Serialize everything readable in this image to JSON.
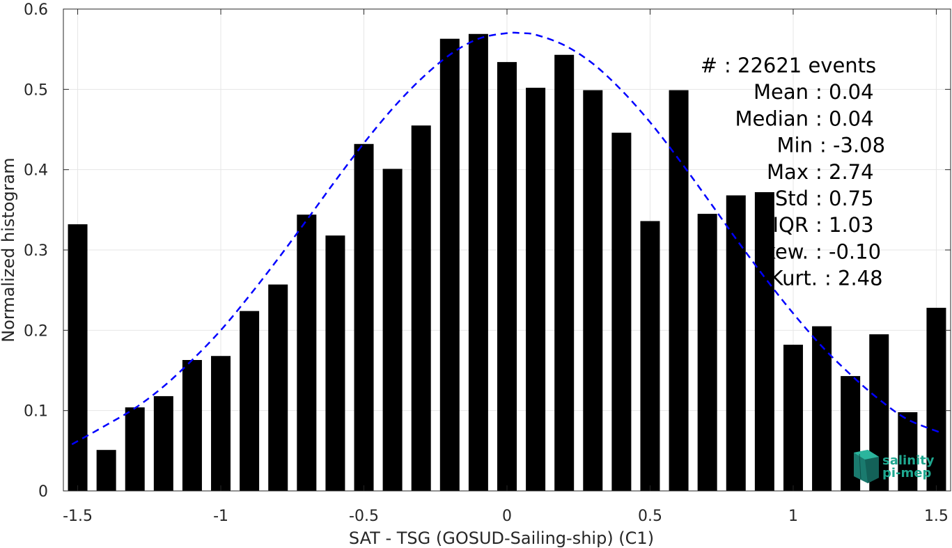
{
  "chart_data": {
    "type": "bar",
    "xlabel": "SAT - TSG (GOSUD-Sailing-ship) (C1)",
    "ylabel": "Normalized histogram",
    "xlim": [
      -1.55,
      1.55
    ],
    "ylim": [
      0,
      0.6
    ],
    "xticks": [
      -1.5,
      -1,
      -0.5,
      0,
      0.5,
      1,
      1.5
    ],
    "xtick_labels": [
      "-1.5",
      "-1",
      "-0.5",
      "0",
      "0.5",
      "1",
      "1.5"
    ],
    "yticks": [
      0,
      0.1,
      0.2,
      0.3,
      0.4,
      0.5,
      0.6
    ],
    "ytick_labels": [
      "0",
      "0.1",
      "0.2",
      "0.3",
      "0.4",
      "0.5",
      "0.6"
    ],
    "grid": true,
    "bar_color": "#000000",
    "fit_color": "#0000ff",
    "x": [
      -1.5,
      -1.4,
      -1.3,
      -1.2,
      -1.1,
      -1.0,
      -0.9,
      -0.8,
      -0.7,
      -0.6,
      -0.5,
      -0.4,
      -0.3,
      -0.2,
      -0.1,
      0.0,
      0.1,
      0.2,
      0.3,
      0.4,
      0.5,
      0.6,
      0.7,
      0.8,
      0.9,
      1.0,
      1.1,
      1.2,
      1.3,
      1.4,
      1.5
    ],
    "values": [
      0.332,
      0.051,
      0.104,
      0.118,
      0.163,
      0.168,
      0.224,
      0.257,
      0.344,
      0.318,
      0.432,
      0.401,
      0.455,
      0.563,
      0.569,
      0.534,
      0.502,
      0.543,
      0.499,
      0.446,
      0.336,
      0.499,
      0.345,
      0.368,
      0.372,
      0.182,
      0.205,
      0.143,
      0.195,
      0.098,
      0.228
    ],
    "fit_curve": {
      "style": "dashed",
      "x": [
        -1.52,
        -1.4,
        -1.3,
        -1.2,
        -1.1,
        -1.0,
        -0.9,
        -0.8,
        -0.7,
        -0.6,
        -0.5,
        -0.4,
        -0.3,
        -0.2,
        -0.1,
        0.0,
        0.05,
        0.1,
        0.2,
        0.3,
        0.4,
        0.5,
        0.6,
        0.7,
        0.8,
        0.9,
        1.0,
        1.1,
        1.2,
        1.3,
        1.4,
        1.52
      ],
      "y": [
        0.058,
        0.082,
        0.103,
        0.13,
        0.163,
        0.2,
        0.243,
        0.289,
        0.337,
        0.386,
        0.433,
        0.476,
        0.513,
        0.543,
        0.563,
        0.57,
        0.57,
        0.568,
        0.555,
        0.532,
        0.499,
        0.459,
        0.413,
        0.364,
        0.314,
        0.266,
        0.221,
        0.18,
        0.145,
        0.114,
        0.089,
        0.072
      ]
    },
    "annotations": [
      {
        "label": "#",
        "value": ": 22621 events"
      },
      {
        "label": "Mean",
        "value": ": 0.04"
      },
      {
        "label": "Median",
        "value": ": 0.04"
      },
      {
        "label": "Min",
        "value": ": -3.08"
      },
      {
        "label": "Max",
        "value": ": 2.74"
      },
      {
        "label": "Std",
        "value": ": 0.75"
      },
      {
        "label": "IQR",
        "value": ": 1.03"
      },
      {
        "label": "kew.",
        "value": ": -0.10"
      },
      {
        "label": "Kurt.",
        "value": ": 2.48"
      }
    ]
  },
  "logo": {
    "line1": "salinity",
    "line2": "pi-mep",
    "color": "#1fa890"
  }
}
